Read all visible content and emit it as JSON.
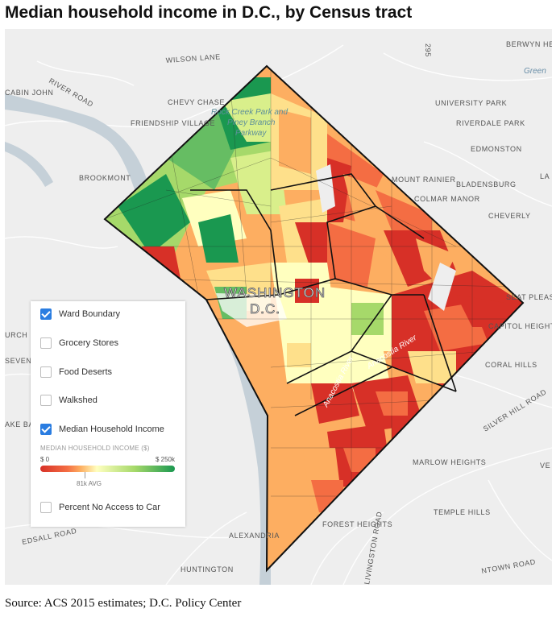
{
  "title": "Median household income in D.C., by Census tract",
  "source": "Source: ACS 2015 estimates; D.C. Policy Center",
  "map": {
    "city_label_1": "WASHINGTON",
    "city_label_2": "D.C.",
    "park_label_1": "Rock Creek Park and",
    "park_label_2": "Piney Branch",
    "park_label_3": "Parkway",
    "river_1": "Anacostia River",
    "river_2": "Anacostia River",
    "river_road": "RIVER ROAD",
    "wilson_lane": "WILSON LANE",
    "cabin_john": "CABIN JOHN",
    "chevy_chase": "CHEVY CHASE",
    "friendship_village": "FRIENDSHIP VILLAGE",
    "brookmont": "BROOKMONT",
    "berwyn_heights": "BERWYN HEIGHTS",
    "university_park": "UNIVERSITY PARK",
    "riverdale_park": "RIVERDALE PARK",
    "edmonston": "EDMONSTON",
    "mount_rainier": "MOUNT RAINIER",
    "bladensburg": "BLADENSBURG",
    "colmar_manor": "COLMAR MANOR",
    "cheverly": "CHEVERLY",
    "seat_pleasant": "SEAT PLEASA",
    "capitol_heights": "CAPITOL HEIGHTS",
    "coral_hills": "CORAL HILLS",
    "silver_hill_road": "SILVER HILL ROAD",
    "marlow_heights": "MARLOW HEIGHTS",
    "temple_hills": "TEMPLE HILLS",
    "forest_heights": "FOREST HEIGHTS",
    "alexandria": "ALEXANDRIA",
    "huntington": "HUNTINGTON",
    "edsall_road": "EDSALL ROAD",
    "ake_barcroft": "AKE BARCROFT",
    "seven_corners": "SEVEN CORNERS",
    "urch": "URCH",
    "green": "Green",
    "la": "LA",
    "ve": "VE",
    "ntown_road": "NTOWN ROAD",
    "livingston_road": "LIVINGSTON ROAD",
    "road_295": "295"
  },
  "legend": {
    "layers": [
      {
        "label": "Ward Boundary",
        "checked": true
      },
      {
        "label": "Grocery Stores",
        "checked": false
      },
      {
        "label": "Food Deserts",
        "checked": false
      },
      {
        "label": "Walkshed",
        "checked": false
      },
      {
        "label": "Median Household Income",
        "checked": true
      }
    ],
    "scale_title": "MEDIAN HOUSEHOLD INCOME ($)",
    "scale_min": "$ 0",
    "scale_max": "$ 250k",
    "scale_avg": "81k AVG",
    "extra_layer": {
      "label": "Percent No Access to Car",
      "checked": false
    }
  },
  "colors": {
    "income_low": "#d73027",
    "income_mid_low": "#f46d43",
    "income_mid": "#fdae61",
    "income_avg": "#ffffbf",
    "income_mid_high": "#a6d96a",
    "income_high": "#1a9850",
    "checkbox_on": "#2a7de1",
    "water": "#c5d0d8",
    "park": "#d8e6d4"
  }
}
